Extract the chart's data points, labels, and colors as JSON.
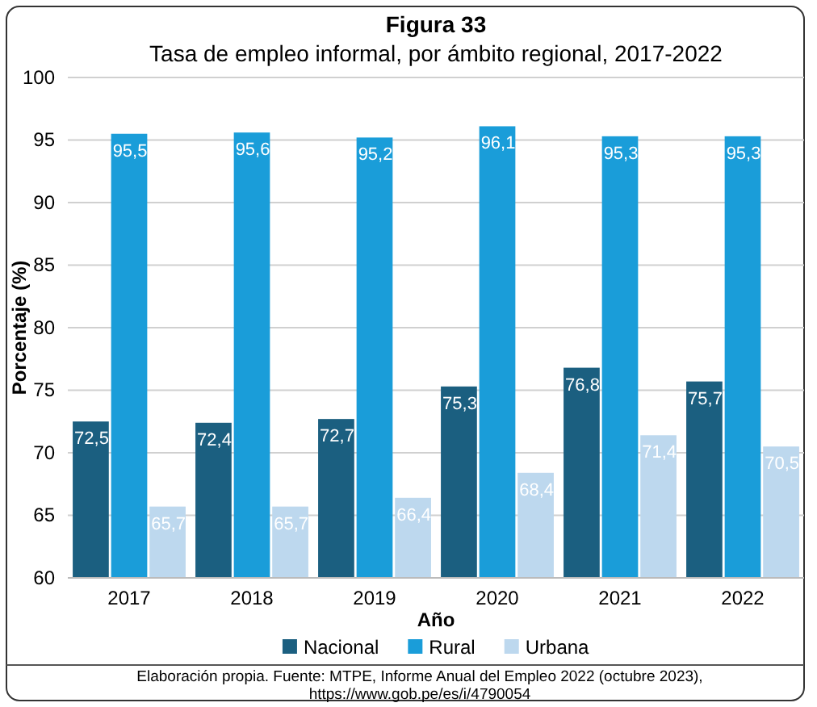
{
  "chart_data": {
    "type": "bar",
    "title": "Figura 33",
    "subtitle": "Tasa de empleo informal, por ámbito regional, 2017-2022",
    "xlabel": "Año",
    "ylabel": "Porcentaje (%)",
    "categories": [
      "2017",
      "2018",
      "2019",
      "2020",
      "2021",
      "2022"
    ],
    "series": [
      {
        "name": "Nacional",
        "color": "#1b5f80",
        "values": [
          72.5,
          72.4,
          72.7,
          75.3,
          76.8,
          75.7
        ],
        "value_labels": [
          "72,5",
          "72,4",
          "72,7",
          "75,3",
          "76,8",
          "75,7"
        ]
      },
      {
        "name": "Rural",
        "color": "#1a9dd9",
        "values": [
          95.5,
          95.6,
          95.2,
          96.1,
          95.3,
          95.3
        ],
        "value_labels": [
          "95,5",
          "95,6",
          "95,2",
          "96,1",
          "95,3",
          "95,3"
        ]
      },
      {
        "name": "Urbana",
        "color": "#bdd8ee",
        "values": [
          65.7,
          65.7,
          66.4,
          68.4,
          71.4,
          70.5
        ],
        "value_labels": [
          "65,7",
          "65,7",
          "66,4",
          "68,4",
          "71,4",
          "70,5"
        ]
      }
    ],
    "ylim": [
      60,
      100
    ],
    "yticks": [
      60,
      65,
      70,
      75,
      80,
      85,
      90,
      95,
      100
    ],
    "grid": "y",
    "legend": "bottom",
    "annotations": [
      "Elaboración propia.  Fuente: MTPE, Informe Anual del Empleo 2022 (octubre 2023),",
      "https://www.gob.pe/es/i/4790054"
    ]
  }
}
